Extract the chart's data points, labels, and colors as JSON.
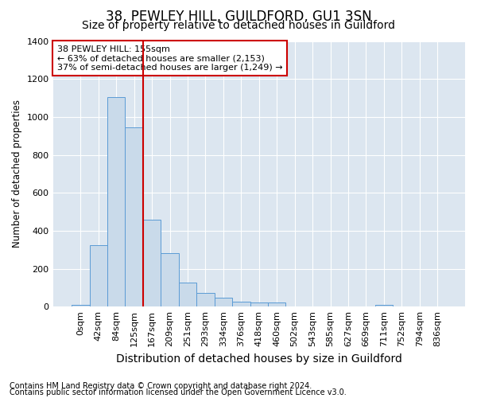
{
  "title": "38, PEWLEY HILL, GUILDFORD, GU1 3SN",
  "subtitle": "Size of property relative to detached houses in Guildford",
  "xlabel": "Distribution of detached houses by size in Guildford",
  "ylabel": "Number of detached properties",
  "footnote1": "Contains HM Land Registry data © Crown copyright and database right 2024.",
  "footnote2": "Contains public sector information licensed under the Open Government Licence v3.0.",
  "bar_labels": [
    "0sqm",
    "42sqm",
    "84sqm",
    "125sqm",
    "167sqm",
    "209sqm",
    "251sqm",
    "293sqm",
    "334sqm",
    "376sqm",
    "418sqm",
    "460sqm",
    "502sqm",
    "543sqm",
    "585sqm",
    "627sqm",
    "669sqm",
    "711sqm",
    "752sqm",
    "794sqm",
    "836sqm"
  ],
  "bar_values": [
    10,
    325,
    1105,
    945,
    460,
    280,
    125,
    70,
    45,
    25,
    20,
    20,
    0,
    0,
    0,
    0,
    0,
    10,
    0,
    0,
    0
  ],
  "bar_color": "#c9daea",
  "bar_edge_color": "#5b9bd5",
  "fig_bg_color": "#ffffff",
  "ax_bg_color": "#dce6f0",
  "grid_color": "#ffffff",
  "vline_color": "#cc0000",
  "vline_x": 3.5,
  "annotation_text": "38 PEWLEY HILL: 155sqm\n← 63% of detached houses are smaller (2,153)\n37% of semi-detached houses are larger (1,249) →",
  "annotation_box_facecolor": "#ffffff",
  "annotation_box_edgecolor": "#cc0000",
  "ylim": [
    0,
    1400
  ],
  "yticks": [
    0,
    200,
    400,
    600,
    800,
    1000,
    1200,
    1400
  ],
  "title_fontsize": 12,
  "subtitle_fontsize": 10,
  "annotation_fontsize": 8,
  "tick_fontsize": 8,
  "xlabel_fontsize": 10,
  "ylabel_fontsize": 8.5,
  "footnote_fontsize": 7
}
